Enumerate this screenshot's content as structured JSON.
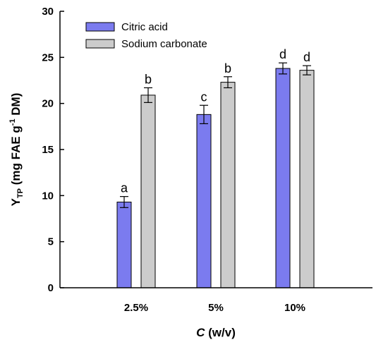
{
  "chart_data": {
    "type": "bar",
    "categories": [
      "2.5%",
      "5%",
      "10%"
    ],
    "series": [
      {
        "name": "Citric acid",
        "color": "#7b7bef",
        "values": [
          9.3,
          18.8,
          23.8
        ],
        "errors": [
          0.6,
          1.0,
          0.6
        ],
        "labels": [
          "a",
          "c",
          "d"
        ]
      },
      {
        "name": "Sodium carbonate",
        "color": "#cccccc",
        "values": [
          20.9,
          22.3,
          23.6
        ],
        "errors": [
          0.8,
          0.6,
          0.5
        ],
        "labels": [
          "b",
          "b",
          "d"
        ]
      }
    ],
    "ylim": [
      0,
      30
    ],
    "yticks": [
      0,
      5,
      10,
      15,
      20,
      25,
      30
    ],
    "ylabel": {
      "main": "Y",
      "subscript": "TP",
      "mid": " (mg FAE g",
      "superscript": "-1",
      "tail": " DM)"
    },
    "xlabel": {
      "italic": "C",
      "rest": " (w/v)"
    },
    "legend_position": "top-left",
    "grid": false
  }
}
